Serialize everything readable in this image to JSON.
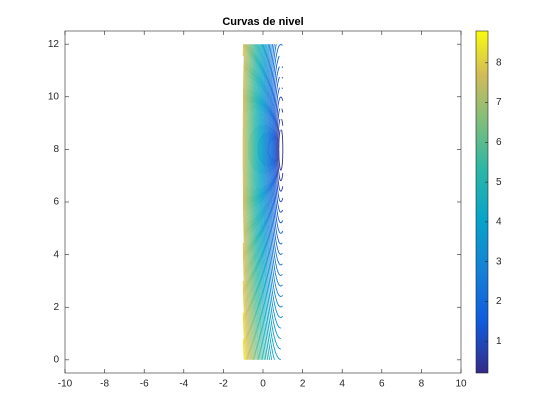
{
  "chart_data": {
    "type": "contour",
    "title": "Curvas de nivel",
    "xlim": [
      -10,
      10
    ],
    "xticks": [
      -10,
      -8,
      -6,
      -4,
      -2,
      0,
      2,
      4,
      6,
      8,
      10
    ],
    "ylim": [
      -0.5,
      12.5
    ],
    "yticks": [
      0,
      2,
      4,
      6,
      8,
      10,
      12
    ],
    "levels": [
      0.4,
      0.6,
      0.8,
      1.0,
      1.2,
      1.4,
      1.6,
      1.8,
      2.0,
      2.2,
      2.4,
      2.6,
      2.8,
      3.0,
      3.2,
      3.4,
      3.6,
      3.8,
      4.0,
      4.2,
      4.4,
      4.6,
      4.8,
      5.0,
      5.2,
      5.4,
      5.6,
      5.8,
      6.0,
      6.2,
      6.4,
      6.6,
      6.8,
      7.0,
      7.2,
      7.4,
      7.6,
      7.8,
      8.0,
      8.2,
      8.4,
      8.6
    ],
    "colorbar": {
      "lim": [
        0.2,
        8.8
      ],
      "ticks": [
        1,
        2,
        3,
        4,
        5,
        6,
        7,
        8
      ],
      "colormap": "parula"
    }
  }
}
